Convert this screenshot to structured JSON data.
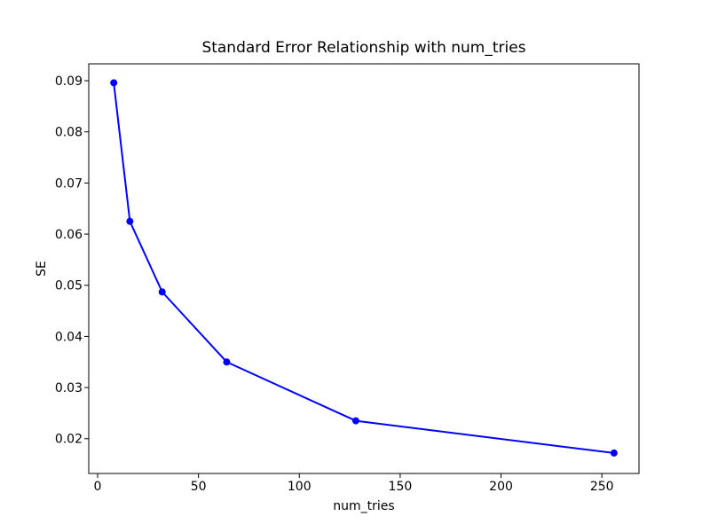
{
  "figure": {
    "background": "#ffffff"
  },
  "chart_data": {
    "type": "line",
    "title": "Standard Error Relationship with num_tries",
    "xlabel": "num_tries",
    "ylabel": "SE",
    "x": [
      8,
      16,
      32,
      64,
      128,
      256
    ],
    "y": [
      0.0896,
      0.0625,
      0.0487,
      0.035,
      0.0235,
      0.0172
    ],
    "line_color": "#0000ff",
    "marker": "circle",
    "marker_color": "#0000ff",
    "axis_color": "#000000",
    "xlim": [
      -4.4,
      268.4
    ],
    "ylim": [
      0.0132,
      0.0933
    ],
    "xticks": [
      0,
      50,
      100,
      150,
      200,
      250
    ],
    "xtick_labels": [
      "0",
      "50",
      "100",
      "150",
      "200",
      "250"
    ],
    "yticks": [
      0.02,
      0.03,
      0.04,
      0.05,
      0.06,
      0.07,
      0.08,
      0.09
    ],
    "ytick_labels": [
      "0.02",
      "0.03",
      "0.04",
      "0.05",
      "0.06",
      "0.07",
      "0.08",
      "0.09"
    ],
    "grid": false,
    "legend": "none"
  }
}
